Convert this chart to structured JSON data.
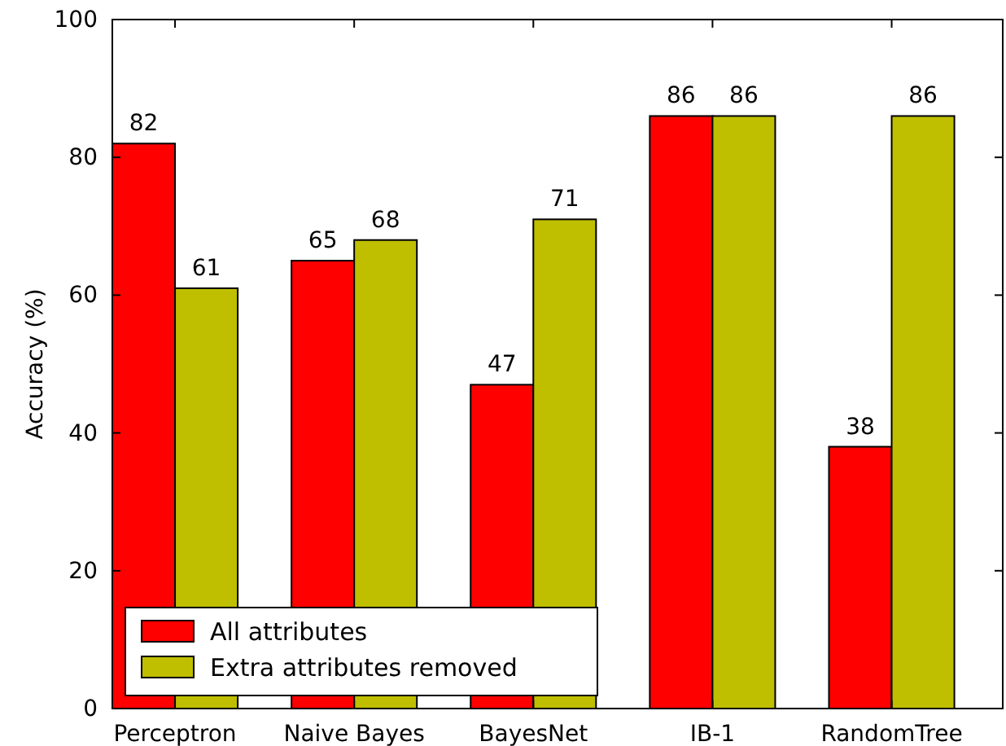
{
  "chart_data": {
    "type": "bar",
    "ylabel": "Accuracy (%)",
    "categories": [
      "Perceptron",
      "Naive Bayes",
      "BayesNet",
      "IB-1",
      "RandomTree"
    ],
    "series": [
      {
        "name": "All attributes",
        "color": "#ff0000",
        "values": [
          82,
          65,
          47,
          86,
          38
        ]
      },
      {
        "name": "Extra attributes removed",
        "color": "#bfbf00",
        "values": [
          61,
          68,
          71,
          86,
          86
        ]
      }
    ],
    "ylim": [
      0,
      100
    ],
    "yticks": [
      0,
      20,
      40,
      60,
      80,
      100
    ],
    "grid": false,
    "legend": "bottom left",
    "data_labels": true
  }
}
